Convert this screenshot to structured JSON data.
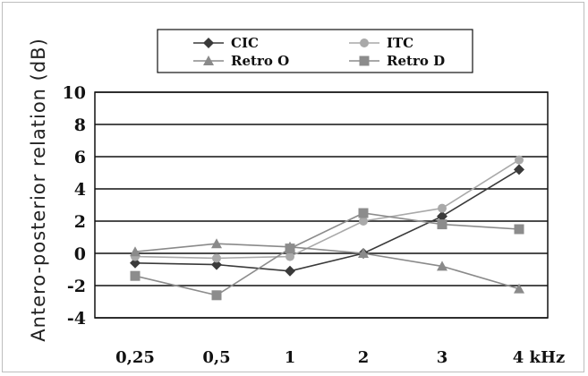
{
  "chart_data": {
    "type": "line",
    "categories": [
      "0,25",
      "0,5",
      "1",
      "2",
      "3",
      "4 kHz"
    ],
    "ylabel": "Antero-posterior relation (dB)",
    "xlabel": "",
    "title": "",
    "ylim": [
      -4,
      10
    ],
    "yticks": [
      10,
      8,
      6,
      4,
      2,
      0,
      -2,
      -4
    ],
    "grid": "horizontal",
    "legend_position": "top-center",
    "series": [
      {
        "name": "CIC",
        "marker": "diamond",
        "color": "#3a3a3a",
        "values": [
          -0.6,
          -0.7,
          -1.1,
          0.0,
          2.3,
          5.2
        ]
      },
      {
        "name": "ITC",
        "marker": "circle",
        "color": "#a9a9a9",
        "values": [
          -0.2,
          -0.3,
          -0.2,
          2.0,
          2.8,
          5.8
        ]
      },
      {
        "name": "Retro O",
        "marker": "triangle",
        "color": "#8a8a8a",
        "values": [
          0.1,
          0.6,
          0.4,
          0.0,
          -0.8,
          -2.2
        ]
      },
      {
        "name": "Retro D",
        "marker": "square",
        "color": "#8c8c8c",
        "values": [
          -1.4,
          -2.6,
          0.3,
          2.5,
          1.8,
          1.5
        ]
      }
    ]
  }
}
